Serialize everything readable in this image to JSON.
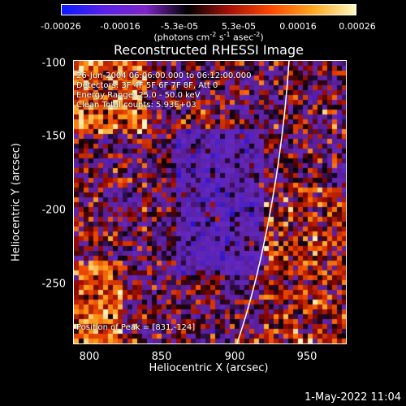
{
  "colorbar": {
    "ticks": [
      "-0.00026",
      "-0.00016",
      "-5.3e-05",
      "5.3e-05",
      "0.00016",
      "0.00026"
    ],
    "units_main": "(photons cm",
    "units_exp1": "-2",
    "units_mid": " s",
    "units_exp2": "-1",
    "units_tail": " asec",
    "units_exp3": "-2",
    "units_close": ")",
    "colors": [
      "#0a1aff",
      "#5a20e8",
      "#7d25c8",
      "#000000",
      "#a81008",
      "#ff4a00",
      "#ffa820",
      "#fff8c0"
    ]
  },
  "title": "Reconstructed RHESSI Image",
  "info": {
    "time": "26-Jun-2004 06:06:00.000 to 06:12:00.000",
    "detectors": "Detectors: 3F 4F 5F 6F 7F 8F, Att 0",
    "energy": "Energy Range: 25.0 - 50.0 keV",
    "clean": "Clean    Total counts: 5.93E+03",
    "peak": "Position of Peak = [831,-124]"
  },
  "axes": {
    "xlabel": "Heliocentric X (arcsec)",
    "ylabel": "Heliocentric Y (arcsec)",
    "xticks": [
      "800",
      "850",
      "900",
      "950"
    ],
    "yticks": [
      "-100",
      "-150",
      "-200",
      "-250"
    ]
  },
  "datestamp": "1-May-2022 11:04"
}
